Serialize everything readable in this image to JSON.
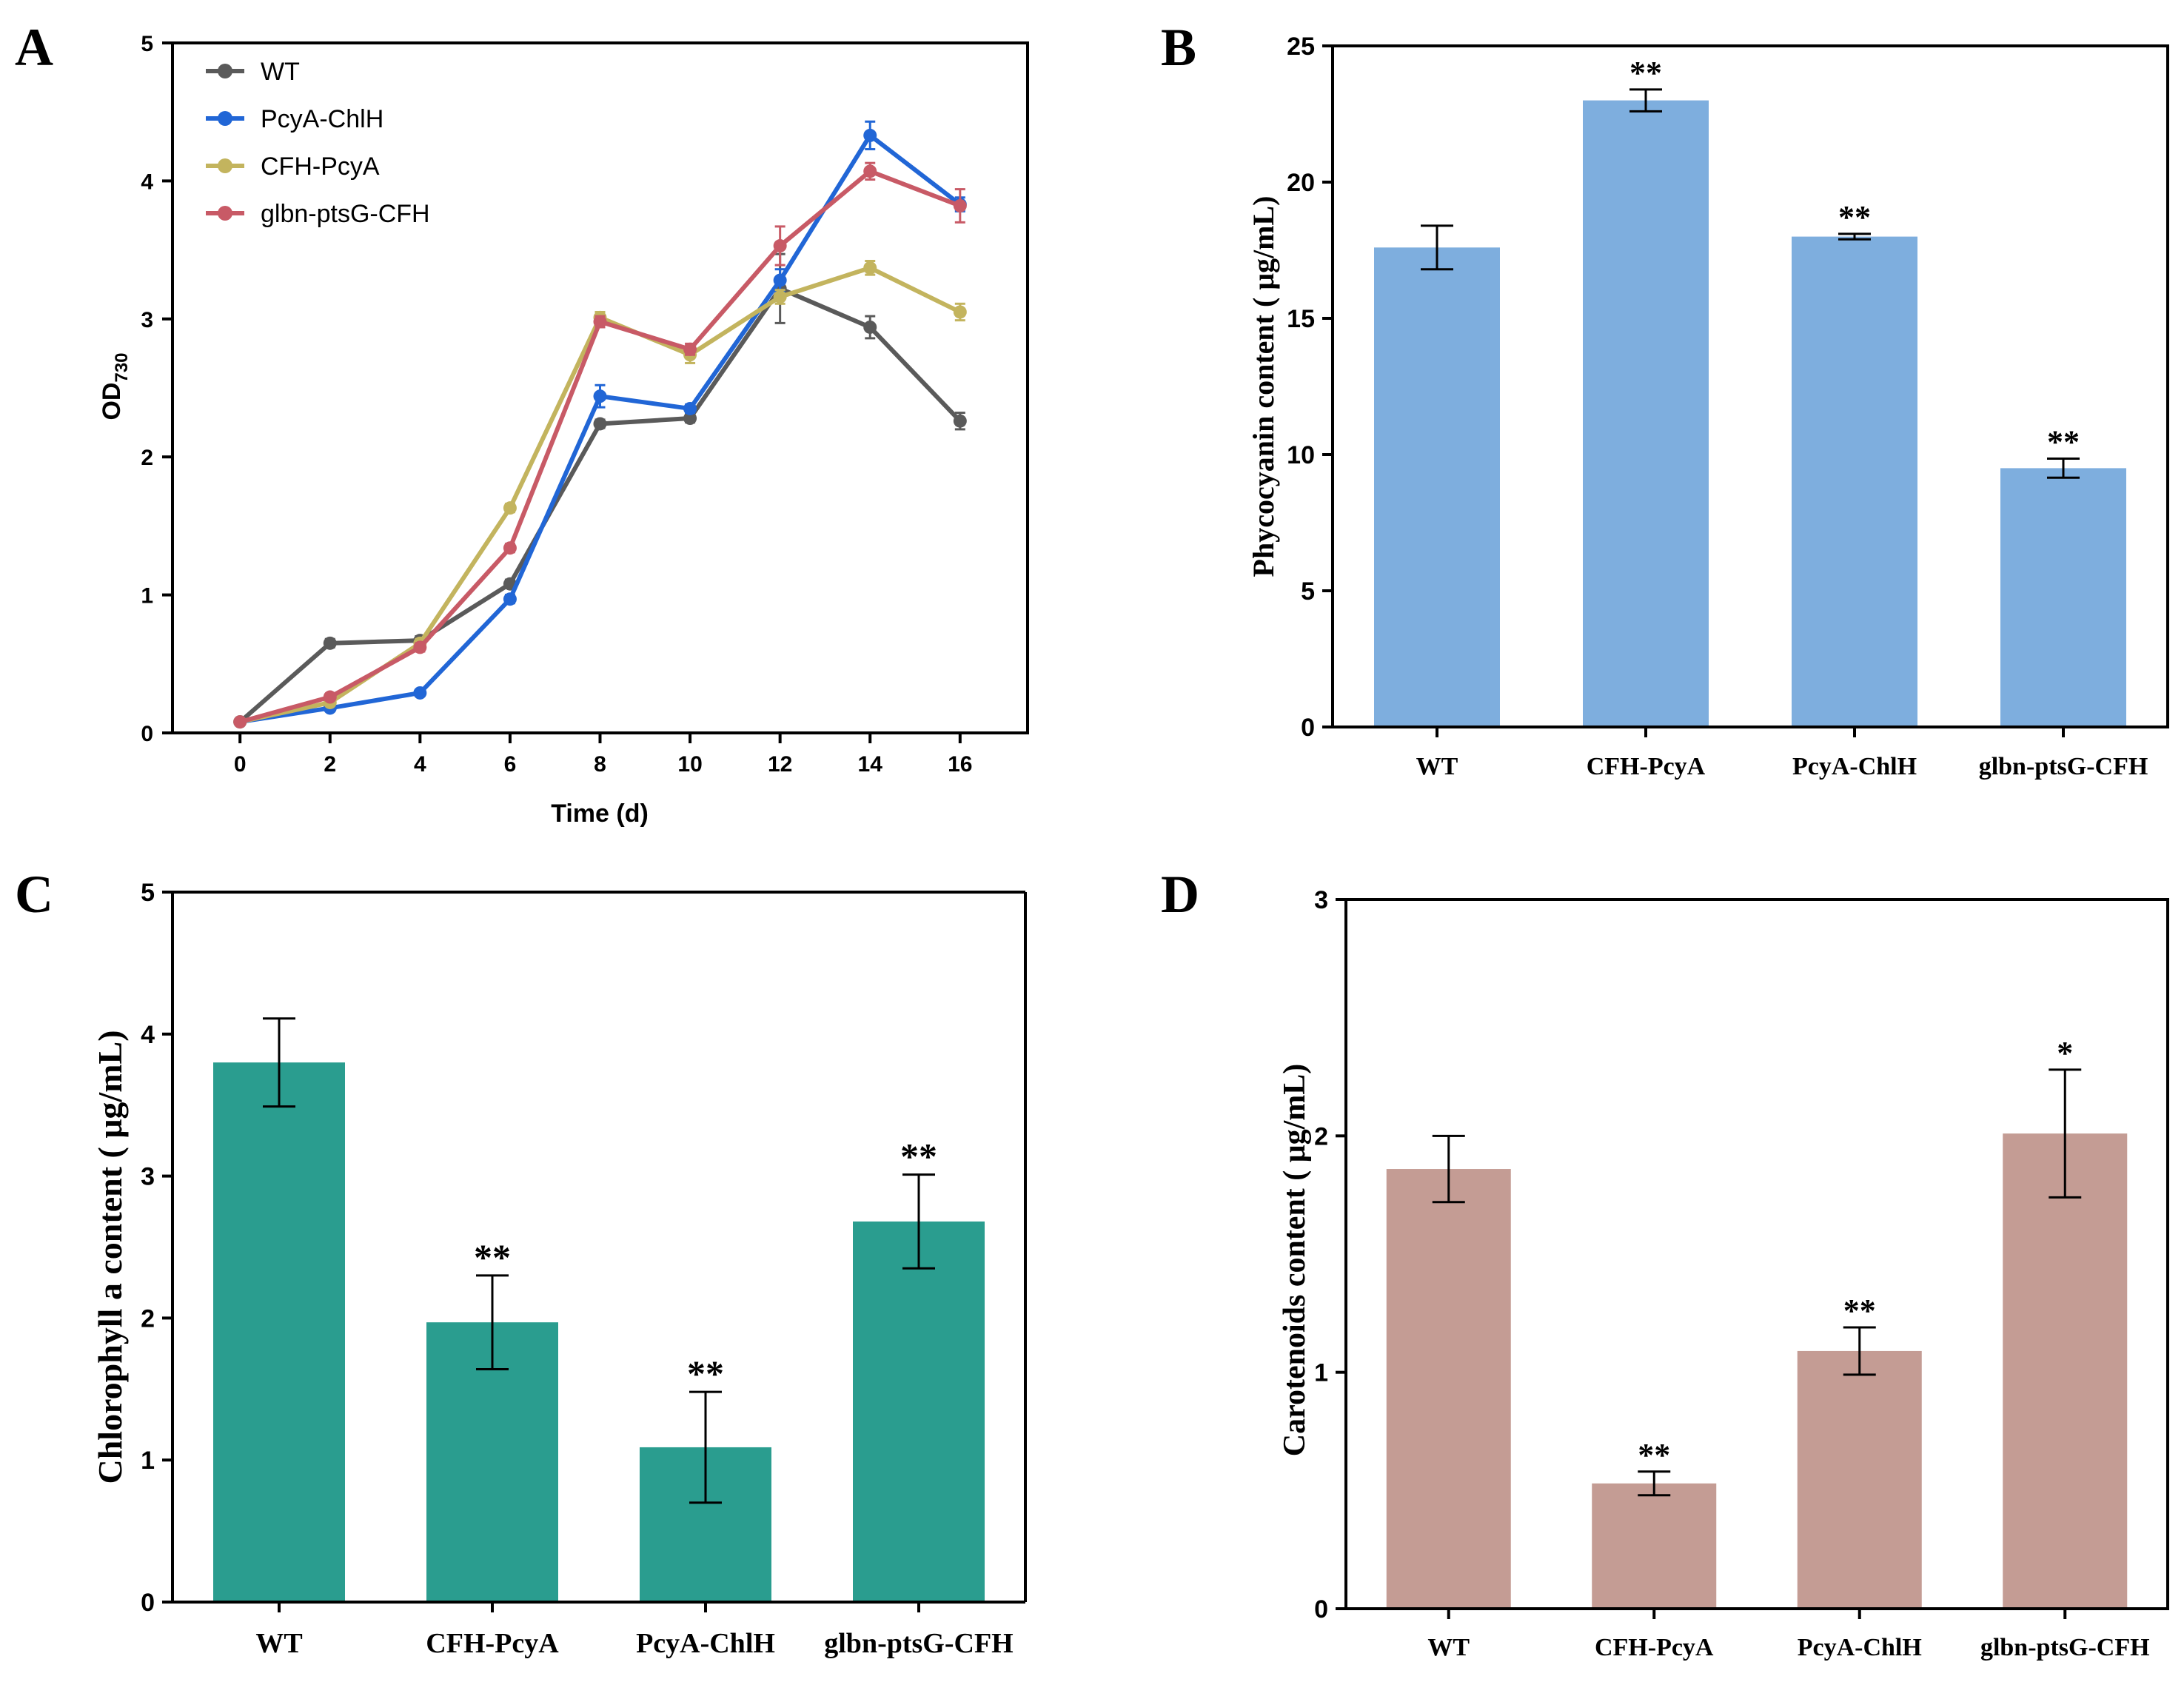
{
  "panels": {
    "A": "A",
    "B": "B",
    "C": "C",
    "D": "D"
  },
  "chart_data": [
    {
      "panel": "A",
      "type": "line",
      "title": "",
      "xlabel": "Time (d)",
      "ylabel_main": "OD",
      "ylabel_sub": "730",
      "x": [
        0,
        2,
        4,
        6,
        8,
        10,
        12,
        14,
        16
      ],
      "xlim": [
        -1.5,
        17.5
      ],
      "ylim": [
        0,
        5
      ],
      "xticks": [
        "0",
        "2",
        "4",
        "6",
        "8",
        "10",
        "12",
        "14",
        "16"
      ],
      "yticks": [
        "0",
        "1",
        "2",
        "3",
        "4",
        "5"
      ],
      "legend_position": "top-left",
      "series": [
        {
          "name": "WT",
          "color": "#5a5a5a",
          "values": [
            0.08,
            0.65,
            0.67,
            1.08,
            2.24,
            2.28,
            3.22,
            2.94,
            2.26
          ],
          "errors": [
            0.02,
            0.03,
            0.03,
            0.03,
            0.03,
            0.03,
            0.25,
            0.08,
            0.06
          ]
        },
        {
          "name": "PcyA-ChlH",
          "color": "#2166d6",
          "values": [
            0.08,
            0.18,
            0.29,
            0.97,
            2.44,
            2.35,
            3.28,
            4.33,
            3.83
          ],
          "errors": [
            0.02,
            0.02,
            0.02,
            0.03,
            0.08,
            0.03,
            0.08,
            0.1,
            0.05
          ]
        },
        {
          "name": "CFH-PcyA",
          "color": "#c3b45e",
          "values": [
            0.08,
            0.22,
            0.65,
            1.63,
            3.01,
            2.74,
            3.16,
            3.37,
            3.05
          ],
          "errors": [
            0.02,
            0.02,
            0.03,
            0.03,
            0.04,
            0.06,
            0.05,
            0.05,
            0.06
          ]
        },
        {
          "name": "glbn-ptsG-CFH",
          "color": "#c85a66",
          "values": [
            0.08,
            0.26,
            0.62,
            1.34,
            2.98,
            2.78,
            3.53,
            4.07,
            3.82
          ],
          "errors": [
            0.02,
            0.02,
            0.03,
            0.03,
            0.04,
            0.04,
            0.14,
            0.06,
            0.12
          ]
        }
      ]
    },
    {
      "panel": "B",
      "type": "bar",
      "title": "",
      "xlabel": "",
      "ylabel": "Phycocyanin content ( μg/mL)",
      "categories": [
        "WT",
        "CFH-PcyA",
        "PcyA-ChlH",
        "glbn-ptsG-CFH"
      ],
      "values": [
        17.6,
        23.0,
        18.0,
        9.5
      ],
      "errors": [
        0.8,
        0.4,
        0.1,
        0.35
      ],
      "significance": [
        "",
        "**",
        "**",
        "**"
      ],
      "ylim": [
        0,
        25
      ],
      "yticks": [
        "0",
        "5",
        "10",
        "15",
        "20",
        "25"
      ],
      "color": "#7eaede"
    },
    {
      "panel": "C",
      "type": "bar",
      "title": "",
      "xlabel": "",
      "ylabel": "Chlorophyll a content ( μg/mL)",
      "categories": [
        "WT",
        "CFH-PcyA",
        "PcyA-ChlH",
        "glbn-ptsG-CFH"
      ],
      "values": [
        3.8,
        1.97,
        1.09,
        2.68
      ],
      "errors": [
        0.31,
        0.33,
        0.39,
        0.33
      ],
      "significance": [
        "",
        "**",
        "**",
        "**"
      ],
      "ylim": [
        0,
        5
      ],
      "yticks": [
        "0",
        "1",
        "2",
        "3",
        "4",
        "5"
      ],
      "color": "#2a9d8f"
    },
    {
      "panel": "D",
      "type": "bar",
      "title": "",
      "xlabel": "",
      "ylabel": "Carotenoids content ( μg/mL)",
      "categories": [
        "WT",
        "CFH-PcyA",
        "PcyA-ChlH",
        "glbn-ptsG-CFH"
      ],
      "values": [
        1.86,
        0.53,
        1.09,
        2.01
      ],
      "errors": [
        0.14,
        0.05,
        0.1,
        0.27
      ],
      "significance": [
        "",
        "**",
        "**",
        "*"
      ],
      "ylim": [
        0,
        3
      ],
      "yticks": [
        "0",
        "1",
        "2",
        "3"
      ],
      "color": "#c49c94"
    }
  ]
}
